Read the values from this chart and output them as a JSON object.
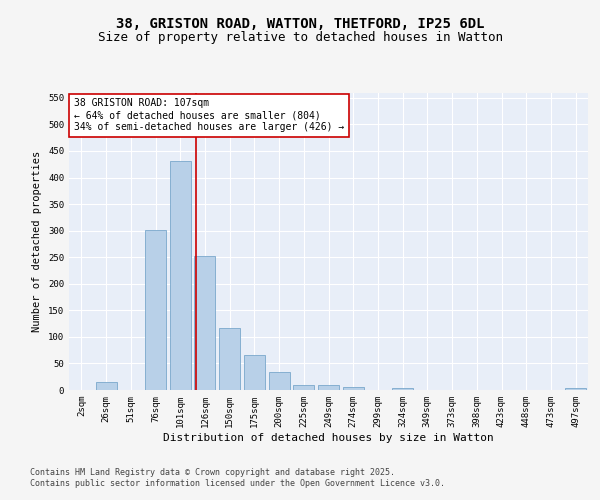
{
  "title_line1": "38, GRISTON ROAD, WATTON, THETFORD, IP25 6DL",
  "title_line2": "Size of property relative to detached houses in Watton",
  "xlabel": "Distribution of detached houses by size in Watton",
  "ylabel": "Number of detached properties",
  "categories": [
    "2sqm",
    "26sqm",
    "51sqm",
    "76sqm",
    "101sqm",
    "126sqm",
    "150sqm",
    "175sqm",
    "200sqm",
    "225sqm",
    "249sqm",
    "274sqm",
    "299sqm",
    "324sqm",
    "349sqm",
    "373sqm",
    "398sqm",
    "423sqm",
    "448sqm",
    "473sqm",
    "497sqm"
  ],
  "values": [
    0,
    15,
    0,
    302,
    432,
    253,
    117,
    65,
    33,
    10,
    10,
    5,
    0,
    3,
    0,
    0,
    0,
    0,
    0,
    0,
    3
  ],
  "bar_color": "#b8d0e8",
  "bar_edge_color": "#7aa8cc",
  "red_line_x": 4.62,
  "red_line_color": "#cc0000",
  "annotation_text": "38 GRISTON ROAD: 107sqm\n← 64% of detached houses are smaller (804)\n34% of semi-detached houses are larger (426) →",
  "annotation_box_color": "#ffffff",
  "annotation_box_edge_color": "#cc0000",
  "ylim": [
    0,
    560
  ],
  "yticks": [
    0,
    50,
    100,
    150,
    200,
    250,
    300,
    350,
    400,
    450,
    500,
    550
  ],
  "footer_text": "Contains HM Land Registry data © Crown copyright and database right 2025.\nContains public sector information licensed under the Open Government Licence v3.0.",
  "bg_color": "#e8eef8",
  "fig_color": "#f5f5f5",
  "grid_color": "#ffffff",
  "title_fontsize": 10,
  "subtitle_fontsize": 9,
  "tick_fontsize": 6.5,
  "ylabel_fontsize": 7.5,
  "xlabel_fontsize": 8,
  "annot_fontsize": 7,
  "footer_fontsize": 6
}
